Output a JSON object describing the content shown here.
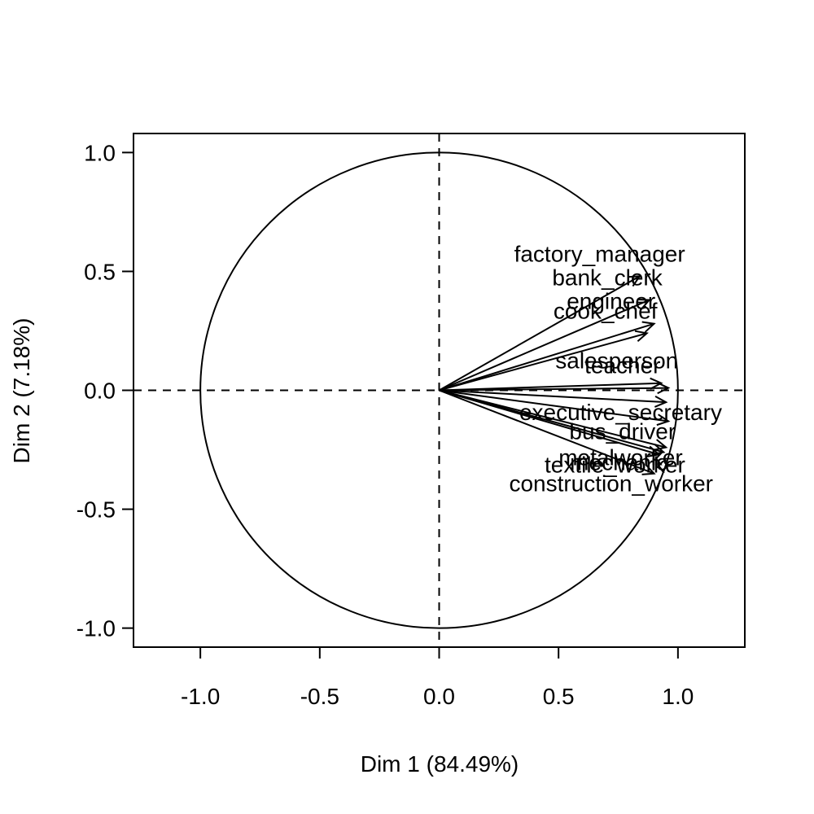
{
  "chart_data": {
    "type": "correlation-circle",
    "title": "",
    "xlabel": "Dim 1 (84.49%)",
    "ylabel": "Dim 2 (7.18%)",
    "xlim": [
      -1.28,
      1.28
    ],
    "ylim": [
      -1.08,
      1.08
    ],
    "x_ticks": [
      -1.0,
      -0.5,
      0.0,
      0.5,
      1.0
    ],
    "y_ticks": [
      -1.0,
      -0.5,
      0.0,
      0.5,
      1.0
    ],
    "x_tick_labels": [
      "-1.0",
      "-0.5",
      "0.0",
      "0.5",
      "1.0"
    ],
    "y_tick_labels": [
      "-1.0",
      "-0.5",
      "0.0",
      "0.5",
      "1.0"
    ],
    "unit_circle": true,
    "reference_lines": "dashed at x=0 and y=0",
    "grid": false,
    "colors": {
      "stroke": "#000000",
      "background": "#ffffff"
    },
    "variables": [
      {
        "name": "factory_manager",
        "x": 0.84,
        "y": 0.48
      },
      {
        "name": "bank_clerk",
        "x": 0.88,
        "y": 0.38
      },
      {
        "name": "engineer",
        "x": 0.9,
        "y": 0.28
      },
      {
        "name": "cook_chef",
        "x": 0.87,
        "y": 0.24
      },
      {
        "name": "salesperson",
        "x": 0.93,
        "y": 0.03
      },
      {
        "name": "teacher",
        "x": 0.96,
        "y": 0.01
      },
      {
        "name": "executive_secretary",
        "x": 0.95,
        "y": -0.05
      },
      {
        "name": "bus_driver",
        "x": 0.96,
        "y": -0.13
      },
      {
        "name": "metalworker",
        "x": 0.95,
        "y": -0.24
      },
      {
        "name": "textile_worker",
        "x": 0.92,
        "y": -0.27
      },
      {
        "name": "mechanic",
        "x": 0.94,
        "y": -0.26
      },
      {
        "name": "construction_worker",
        "x": 0.9,
        "y": -0.35
      }
    ]
  }
}
